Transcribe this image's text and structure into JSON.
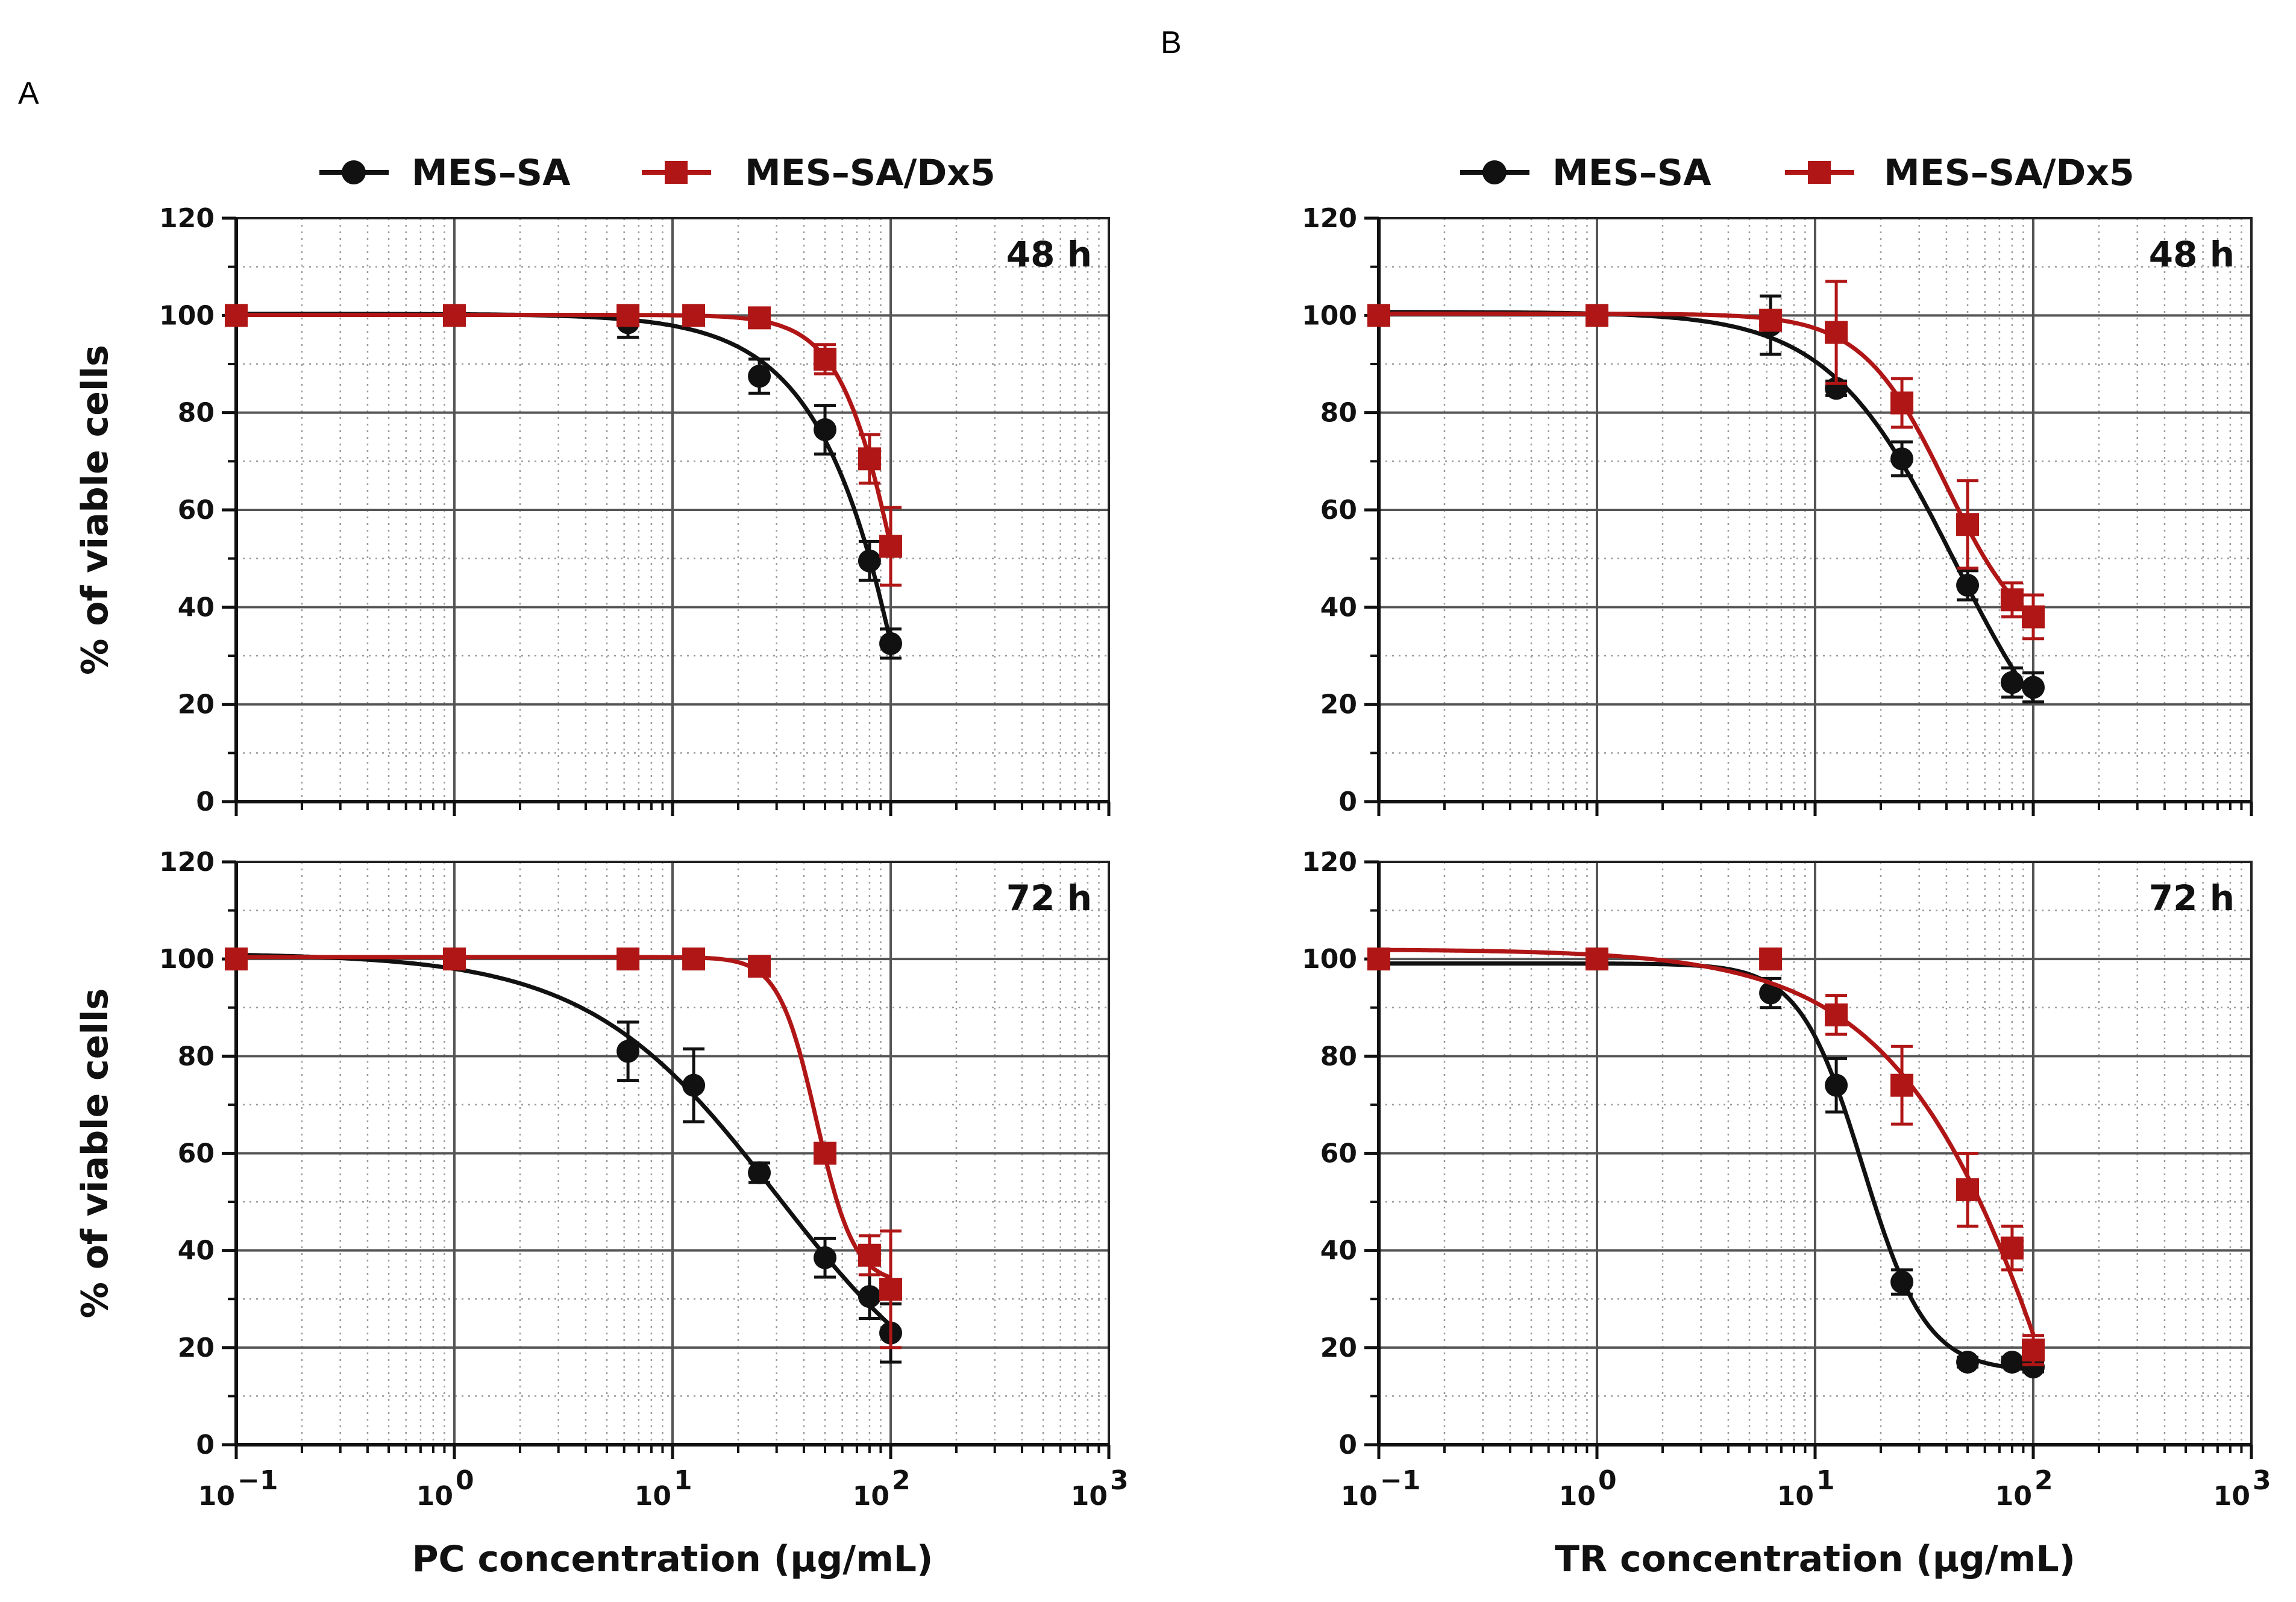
{
  "figure": {
    "panels": [
      "A",
      "B"
    ],
    "legend": {
      "series": [
        {
          "name": "MES–SA",
          "color": "#111111",
          "marker": "circle"
        },
        {
          "name": "MES–SA/Dx5",
          "color": "#b01616",
          "marker": "square"
        }
      ]
    },
    "y_axis_title": "% of viable cells"
  },
  "chart_data": [
    {
      "id": "A48",
      "panel": "A",
      "type": "line",
      "time_label": "48 h",
      "title": "",
      "xlabel": "PC concentration (µg/mL)",
      "ylabel": "% of viable cells",
      "xscale": "log",
      "xlim": [
        0.1,
        1000
      ],
      "ylim": [
        0,
        120
      ],
      "x_tick_values": [
        0.1,
        1,
        10,
        100,
        1000
      ],
      "x_tick_labels": [
        {
          "base": "10",
          "exp": "−1"
        },
        {
          "base": "10",
          "exp": "0"
        },
        {
          "base": "10",
          "exp": "1"
        },
        {
          "base": "10",
          "exp": "2"
        },
        {
          "base": "10",
          "exp": "3"
        }
      ],
      "y_ticks": [
        "0",
        "20",
        "40",
        "60",
        "80",
        "100",
        "120"
      ],
      "series": [
        {
          "name": "MES–SA",
          "x": [
            0.1,
            1,
            6.25,
            12.5,
            25,
            50,
            80,
            100
          ],
          "y": [
            100,
            100,
            98.5,
            100,
            87.5,
            76.5,
            49.5,
            32.5
          ],
          "err": [
            1,
            1,
            3,
            1,
            3.5,
            5,
            4,
            3
          ]
        },
        {
          "name": "MES–SA/Dx5",
          "x": [
            0.1,
            1,
            6.25,
            12.5,
            25,
            50,
            80,
            100
          ],
          "y": [
            100,
            100,
            100,
            100,
            99.5,
            91,
            70.5,
            52.5
          ],
          "err": [
            1,
            1,
            1,
            1,
            1.5,
            3,
            5,
            8
          ]
        }
      ]
    },
    {
      "id": "A72",
      "panel": "A",
      "type": "line",
      "time_label": "72 h",
      "title": "",
      "xlabel": "PC concentration (µg/mL)",
      "ylabel": "% of viable cells",
      "xscale": "log",
      "xlim": [
        0.1,
        1000
      ],
      "ylim": [
        0,
        120
      ],
      "x_tick_values": [
        0.1,
        1,
        10,
        100,
        1000
      ],
      "x_tick_labels": [
        {
          "base": "10",
          "exp": "−1"
        },
        {
          "base": "10",
          "exp": "0"
        },
        {
          "base": "10",
          "exp": "1"
        },
        {
          "base": "10",
          "exp": "2"
        },
        {
          "base": "10",
          "exp": "3"
        }
      ],
      "y_ticks": [
        "0",
        "20",
        "40",
        "60",
        "80",
        "100",
        "120"
      ],
      "series": [
        {
          "name": "MES–SA",
          "x": [
            0.1,
            1,
            6.25,
            12.5,
            25,
            50,
            80,
            100
          ],
          "y": [
            100,
            100,
            81,
            74,
            56,
            38.5,
            30.5,
            23
          ],
          "err": [
            1,
            1,
            6,
            7.5,
            2,
            4,
            4.5,
            6
          ]
        },
        {
          "name": "MES–SA/Dx5",
          "x": [
            0.1,
            1,
            6.25,
            12.5,
            25,
            50,
            80,
            100
          ],
          "y": [
            100,
            100,
            100,
            100,
            98.5,
            60,
            39,
            32
          ],
          "err": [
            1,
            1,
            1,
            1,
            1.5,
            2,
            4,
            12
          ]
        }
      ]
    },
    {
      "id": "B48",
      "panel": "B",
      "type": "line",
      "time_label": "48 h",
      "title": "",
      "xlabel": "TR concentration (µg/mL)",
      "ylabel": "% of viable cells",
      "xscale": "log",
      "xlim": [
        0.1,
        1000
      ],
      "ylim": [
        0,
        120
      ],
      "x_tick_values": [
        0.1,
        1,
        10,
        100,
        1000
      ],
      "x_tick_labels": [
        {
          "base": "10",
          "exp": "−1"
        },
        {
          "base": "10",
          "exp": "0"
        },
        {
          "base": "10",
          "exp": "1"
        },
        {
          "base": "10",
          "exp": "2"
        },
        {
          "base": "10",
          "exp": "3"
        }
      ],
      "y_ticks": [
        "0",
        "20",
        "40",
        "60",
        "80",
        "100",
        "120"
      ],
      "series": [
        {
          "name": "MES–SA",
          "x": [
            0.1,
            1,
            6.25,
            12.5,
            25,
            50,
            80,
            100
          ],
          "y": [
            100,
            100,
            98,
            85,
            70.5,
            44.5,
            24.5,
            23.5
          ],
          "err": [
            1,
            1,
            6,
            1.5,
            3.5,
            3,
            3,
            3
          ]
        },
        {
          "name": "MES–SA/Dx5",
          "x": [
            0.1,
            1,
            6.25,
            12.5,
            25,
            50,
            80,
            100
          ],
          "y": [
            100,
            100,
            99,
            96.5,
            82,
            57,
            41.5,
            38
          ],
          "err": [
            1,
            1,
            1,
            10.5,
            5,
            9,
            3.5,
            4.5
          ]
        }
      ]
    },
    {
      "id": "B72",
      "panel": "B",
      "type": "line",
      "time_label": "72 h",
      "title": "",
      "xlabel": "TR concentration (µg/mL)",
      "ylabel": "% of viable cells",
      "xscale": "log",
      "xlim": [
        0.1,
        1000
      ],
      "ylim": [
        0,
        120
      ],
      "x_tick_values": [
        0.1,
        1,
        10,
        100,
        1000
      ],
      "x_tick_labels": [
        {
          "base": "10",
          "exp": "−1"
        },
        {
          "base": "10",
          "exp": "0"
        },
        {
          "base": "10",
          "exp": "1"
        },
        {
          "base": "10",
          "exp": "2"
        },
        {
          "base": "10",
          "exp": "3"
        }
      ],
      "y_ticks": [
        "0",
        "20",
        "40",
        "60",
        "80",
        "100",
        "120"
      ],
      "series": [
        {
          "name": "MES–SA",
          "x": [
            0.1,
            1,
            6.25,
            12.5,
            25,
            50,
            80,
            100
          ],
          "y": [
            100,
            100,
            93,
            74,
            33.5,
            17,
            17,
            16
          ],
          "err": [
            1,
            1,
            3,
            5.5,
            2.5,
            1,
            1,
            1
          ]
        },
        {
          "name": "MES–SA/Dx5",
          "x": [
            0.1,
            1,
            6.25,
            12.5,
            25,
            50,
            80,
            100
          ],
          "y": [
            100,
            100,
            100,
            88.5,
            74,
            52.5,
            40.5,
            19.5
          ],
          "err": [
            1,
            1,
            1,
            4,
            8,
            7.5,
            4.5,
            3
          ]
        }
      ]
    }
  ]
}
